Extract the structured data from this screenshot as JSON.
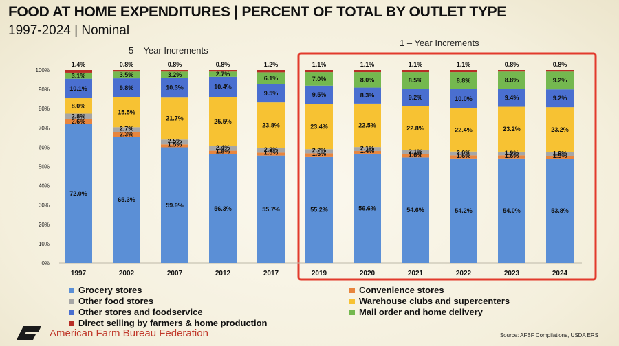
{
  "title": "FOOD AT HOME EXPENDITURES | PERCENT OF TOTAL BY OUTLET TYPE",
  "subtitle": "1997-2024 | Nominal",
  "group_labels": {
    "five_year": "5 – Year Increments",
    "one_year": "1 – Year Increments"
  },
  "logo_text": "American Farm Bureau Federation",
  "logo_mark": "FB",
  "source": "Source: AFBF Compilations, USDA ERS",
  "colors": {
    "grocery": "#5b8fd6",
    "convenience": "#e8853d",
    "other_food": "#a6a6a6",
    "warehouse": "#f7c233",
    "other_stores": "#4a6fd0",
    "mail_order": "#74b84f",
    "direct": "#b82e26",
    "highlight_box": "#e23a2c",
    "logo": "#1a1a1a"
  },
  "legend": [
    {
      "label": "Grocery stores",
      "color": "#5b8fd6"
    },
    {
      "label": "Convenience stores",
      "color": "#e8853d"
    },
    {
      "label": "Other food stores",
      "color": "#a6a6a6"
    },
    {
      "label": "Warehouse clubs and supercenters",
      "color": "#f7c233"
    },
    {
      "label": "Other stores and foodservice",
      "color": "#4a6fd0"
    },
    {
      "label": "Mail order and home delivery",
      "color": "#74b84f"
    },
    {
      "label": "Direct selling by farmers & home production",
      "color": "#b82e26"
    }
  ],
  "chart_data": {
    "type": "bar",
    "stacked": true,
    "title": "FOOD AT HOME EXPENDITURES | PERCENT OF TOTAL BY OUTLET TYPE",
    "categories": [
      "1997",
      "2002",
      "2007",
      "2012",
      "2017",
      "2019",
      "2020",
      "2021",
      "2022",
      "2023",
      "2024"
    ],
    "ylim": [
      0,
      100
    ],
    "yticks": [
      "0%",
      "10%",
      "20%",
      "30%",
      "40%",
      "50%",
      "60%",
      "70%",
      "80%",
      "90%",
      "100%"
    ],
    "grid": false,
    "legend_position": "bottom",
    "series": [
      {
        "name": "Grocery stores",
        "color": "#5b8fd6",
        "values": [
          72.0,
          65.3,
          59.9,
          56.3,
          55.7,
          55.2,
          56.6,
          54.6,
          54.2,
          54.0,
          53.8
        ],
        "labels": [
          "72.0%",
          "65.3%",
          "59.9%",
          "56.3%",
          "55.7%",
          "55.2%",
          "56.6%",
          "54.6%",
          "54.2%",
          "54.0%",
          "53.8%"
        ]
      },
      {
        "name": "Convenience stores",
        "color": "#e8853d",
        "values": [
          2.6,
          2.3,
          1.5,
          1.8,
          1.5,
          1.6,
          1.4,
          1.6,
          1.6,
          1.6,
          1.5
        ],
        "labels": [
          "2.6%",
          "2.3%",
          "1.5%",
          "1.8%",
          "1.5%",
          "1.6%",
          "1.4%",
          "1.6%",
          "1.6%",
          "1.6%",
          "1.5%"
        ]
      },
      {
        "name": "Other food stores",
        "color": "#a6a6a6",
        "values": [
          2.8,
          2.7,
          2.5,
          2.4,
          2.3,
          2.2,
          2.1,
          2.1,
          2.0,
          1.9,
          1.9
        ],
        "labels": [
          "2.8%",
          "2.7%",
          "2.5%",
          "2.4%",
          "2.3%",
          "2.2%",
          "2.1%",
          "2.1%",
          "2.0%",
          "1.9%",
          "1.9%"
        ]
      },
      {
        "name": "Warehouse clubs and supercenters",
        "color": "#f7c233",
        "values": [
          8.0,
          15.5,
          21.7,
          25.5,
          23.8,
          23.4,
          22.5,
          22.8,
          22.4,
          23.2,
          23.2
        ],
        "labels": [
          "8.0%",
          "15.5%",
          "21.7%",
          "25.5%",
          "23.8%",
          "23.4%",
          "22.5%",
          "22.8%",
          "22.4%",
          "23.2%",
          "23.2%"
        ]
      },
      {
        "name": "Other stores and foodservice",
        "color": "#4a6fd0",
        "values": [
          10.1,
          9.8,
          10.3,
          10.4,
          9.5,
          9.5,
          8.3,
          9.2,
          10.0,
          9.4,
          9.2
        ],
        "labels": [
          "10.1%",
          "9.8%",
          "10.3%",
          "10.4%",
          "9.5%",
          "9.5%",
          "8.3%",
          "9.2%",
          "10.0%",
          "9.4%",
          "9.2%"
        ]
      },
      {
        "name": "Mail order and home delivery",
        "color": "#74b84f",
        "values": [
          3.1,
          3.5,
          3.2,
          2.7,
          6.1,
          7.0,
          8.0,
          8.5,
          8.8,
          8.8,
          9.2
        ],
        "labels": [
          "3.1%",
          "3.5%",
          "3.2%",
          "2.7%",
          "6.1%",
          "7.0%",
          "8.0%",
          "8.5%",
          "8.8%",
          "8.8%",
          "9.2%"
        ]
      },
      {
        "name": "Direct selling by farmers & home production",
        "color": "#b82e26",
        "values": [
          1.4,
          0.8,
          0.8,
          0.8,
          1.2,
          1.1,
          1.1,
          1.1,
          1.1,
          0.8,
          0.8
        ],
        "labels": [
          "1.4%",
          "0.8%",
          "0.8%",
          "0.8%",
          "1.2%",
          "1.1%",
          "1.1%",
          "1.1%",
          "1.1%",
          "0.8%",
          "0.8%"
        ]
      }
    ]
  }
}
